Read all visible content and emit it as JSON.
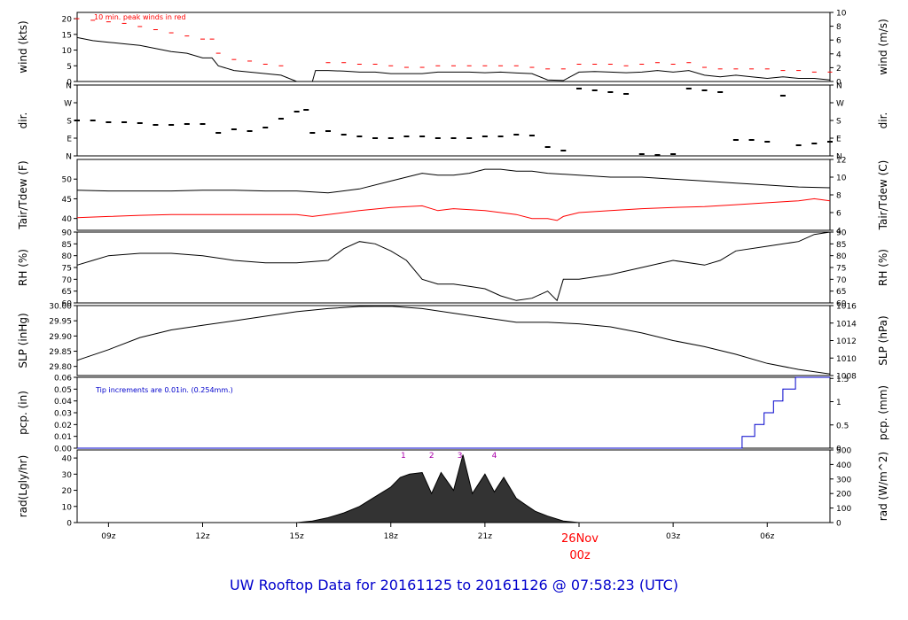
{
  "colors": {
    "axis": "#000000",
    "line": "#000000",
    "red": "#ff0000",
    "blue": "#0000cc",
    "purple": "#aa00aa",
    "footer": "#0000cc"
  },
  "footer_title": "UW Rooftop Data for 20161125  to  20161126 @ 07:58:23  (UTC)",
  "chart_data": [
    {
      "type": "line",
      "id": "wind",
      "ylabel_left": "wind (kts)",
      "ylabel_right": "wind (m/s)",
      "ylim": [
        0,
        22
      ],
      "left_ticks": [
        0,
        5,
        10,
        15,
        20
      ],
      "right_ticks": [
        "0",
        "2",
        "4",
        "6",
        "8",
        "10"
      ],
      "annotation": "10 min. peak winds in red",
      "series": [
        {
          "color": "#000000",
          "x_hours": [
            8,
            8.5,
            9,
            9.5,
            10,
            10.5,
            11,
            11.5,
            12,
            12.3,
            12.5,
            13,
            13.5,
            14,
            14.5,
            15,
            15.5,
            15.6,
            16,
            16.5,
            17,
            17.5,
            18,
            18.5,
            19,
            19.5,
            20,
            20.5,
            21,
            21.5,
            22,
            22.5,
            23,
            23.5,
            24,
            24.5,
            25,
            25.5,
            26,
            26.5,
            27,
            27.5,
            28,
            28.5,
            29,
            29.5,
            30,
            30.5,
            31,
            31.5,
            32
          ],
          "values": [
            14,
            13,
            12.5,
            12,
            11.5,
            10.5,
            9.5,
            9,
            7.5,
            7.5,
            5,
            3.5,
            3,
            2.5,
            2,
            0,
            0,
            3.5,
            3.5,
            3.3,
            3,
            3,
            2.5,
            2.5,
            2.5,
            3,
            3,
            3,
            2.8,
            3,
            2.7,
            2.5,
            0.5,
            0.3,
            3,
            3.2,
            3,
            2.8,
            3,
            3.5,
            3,
            3.5,
            2,
            1.5,
            2,
            1.5,
            1,
            1.5,
            1,
            1,
            0.5
          ]
        },
        {
          "color": "#ff0000",
          "x_hours": [
            8,
            8.5,
            9,
            9.5,
            10,
            10.5,
            11,
            11.5,
            12,
            12.3,
            12.5,
            13,
            13.5,
            14,
            14.5,
            16,
            16.5,
            17,
            17.5,
            18,
            18.5,
            19,
            19.5,
            20,
            20.5,
            21,
            21.5,
            22,
            22.5,
            23,
            23.5,
            24,
            24.5,
            25,
            25.5,
            26,
            26.5,
            27,
            27.5,
            28,
            28.5,
            29,
            29.5,
            30,
            30.5,
            31,
            31.5,
            32
          ],
          "values": [
            20,
            19.5,
            19,
            18.5,
            17.5,
            16.5,
            15.5,
            14.5,
            13.5,
            13.5,
            9,
            7,
            6.5,
            5.5,
            5,
            6,
            6,
            5.5,
            5.5,
            5,
            4.5,
            4.5,
            5,
            5,
            5,
            5,
            5,
            5,
            4.5,
            4,
            4,
            5.5,
            5.5,
            5.5,
            5,
            5.5,
            6,
            5.5,
            6,
            4.5,
            4,
            4,
            4,
            4,
            3.5,
            3.5,
            3,
            3
          ]
        }
      ]
    },
    {
      "type": "scatter",
      "id": "dir",
      "ylabel_left": "dir.",
      "ylabel_right": "dir.",
      "ylim": [
        0,
        4
      ],
      "left_ticks": [
        "N",
        "E",
        "S",
        "W",
        "N"
      ],
      "right_ticks": [
        "N",
        "E",
        "S",
        "W",
        "N"
      ],
      "series": [
        {
          "color": "#000000",
          "x_hours": [
            8,
            8.5,
            9,
            9.5,
            10,
            10.5,
            11,
            11.5,
            12,
            12.5,
            13,
            13.5,
            14,
            14.5,
            15,
            15.3,
            15.5,
            16,
            16.5,
            17,
            17.5,
            18,
            18.5,
            19,
            19.5,
            20,
            20.5,
            21,
            21.5,
            22,
            22.5,
            23,
            23.5,
            24,
            24.5,
            25,
            25.5,
            26,
            26.5,
            27,
            27.5,
            28,
            28.5,
            29,
            29.5,
            30,
            30.5,
            31,
            31.5,
            32
          ],
          "values": [
            2,
            2,
            1.9,
            1.9,
            1.85,
            1.75,
            1.75,
            1.8,
            1.8,
            1.3,
            1.5,
            1.4,
            1.6,
            2.1,
            2.5,
            2.6,
            1.3,
            1.4,
            1.2,
            1.1,
            1.0,
            1.0,
            1.1,
            1.1,
            1.0,
            1.0,
            1.0,
            1.1,
            1.1,
            1.2,
            1.15,
            0.5,
            0.3,
            3.8,
            3.7,
            3.6,
            3.5,
            0.1,
            0.05,
            0.1,
            3.8,
            3.7,
            3.6,
            0.9,
            0.9,
            0.8,
            3.4,
            0.6,
            0.7,
            0.8
          ]
        }
      ]
    },
    {
      "type": "line",
      "id": "temp",
      "ylabel_left": "Tair/Tdew (F)",
      "ylabel_right": "Tair/Tdew (C)",
      "ylim": [
        37,
        55
      ],
      "left_ticks": [
        40,
        45,
        50
      ],
      "right_ticks": [
        "4",
        "6",
        "8",
        "10",
        "12"
      ],
      "series": [
        {
          "color": "#000000",
          "x_hours": [
            8,
            9,
            10,
            11,
            12,
            13,
            14,
            15,
            16,
            17,
            18,
            18.5,
            19,
            19.5,
            20,
            20.5,
            21,
            21.5,
            22,
            22.5,
            23,
            24,
            25,
            26,
            27,
            28,
            29,
            30,
            31,
            32
          ],
          "values": [
            47.2,
            47,
            47,
            47,
            47.2,
            47.2,
            47,
            47,
            46.5,
            47.5,
            49.5,
            50.5,
            51.5,
            51,
            51,
            51.5,
            52.5,
            52.5,
            52,
            52,
            51.5,
            51,
            50.5,
            50.5,
            50,
            49.5,
            49,
            48.5,
            48,
            47.8
          ]
        },
        {
          "color": "#ff0000",
          "x_hours": [
            8,
            9,
            10,
            11,
            12,
            13,
            14,
            15,
            15.5,
            16,
            17,
            18,
            19,
            19.5,
            20,
            21,
            21.5,
            22,
            22.5,
            23,
            23.3,
            23.5,
            24,
            25,
            26,
            27,
            28,
            29,
            30,
            31,
            31.5,
            32
          ],
          "values": [
            40.2,
            40.5,
            40.8,
            41,
            41,
            41,
            41,
            41,
            40.5,
            41,
            42,
            42.8,
            43.2,
            42,
            42.5,
            42,
            41.5,
            41,
            40,
            40,
            39.5,
            40.5,
            41.5,
            42,
            42.5,
            42.8,
            43,
            43.5,
            44,
            44.5,
            45,
            44.5
          ]
        }
      ]
    },
    {
      "type": "line",
      "id": "rh",
      "ylabel_left": "RH (%)",
      "ylabel_right": "RH (%)",
      "ylim": [
        60,
        90
      ],
      "left_ticks": [
        60,
        65,
        70,
        75,
        80,
        85,
        90
      ],
      "right_ticks": [
        "60",
        "65",
        "70",
        "75",
        "80",
        "85",
        "90"
      ],
      "series": [
        {
          "color": "#000000",
          "x_hours": [
            8,
            8.5,
            9,
            10,
            11,
            12,
            13,
            14,
            15,
            16,
            16.5,
            17,
            17.5,
            18,
            18.5,
            19,
            19.5,
            20,
            20.5,
            21,
            21.5,
            22,
            22.5,
            23,
            23.3,
            23.5,
            24,
            25,
            26,
            27,
            28,
            28.5,
            29,
            30,
            31,
            31.5,
            32
          ],
          "values": [
            76,
            78,
            80,
            81,
            81,
            80,
            78,
            77,
            77,
            78,
            83,
            86,
            85,
            82,
            78,
            70,
            68,
            68,
            67,
            66,
            63,
            61,
            62,
            65,
            61,
            70,
            70,
            72,
            75,
            78,
            76,
            78,
            82,
            84,
            86,
            89,
            90
          ]
        }
      ]
    },
    {
      "type": "line",
      "id": "slp",
      "ylabel_left": "SLP (inHg)",
      "ylabel_right": "SLP (hPa)",
      "ylim": [
        29.77,
        30.0
      ],
      "left_ticks": [
        29.8,
        29.85,
        29.9,
        29.95,
        30.0
      ],
      "left_tick_labels": [
        "29.80",
        "29.85",
        "29.90",
        "29.95",
        "30.00"
      ],
      "right_ticks": [
        "1008",
        "1010",
        "1012",
        "1014",
        "1016"
      ],
      "series": [
        {
          "color": "#000000",
          "x_hours": [
            8,
            9,
            10,
            11,
            12,
            13,
            14,
            15,
            16,
            17,
            18,
            19,
            20,
            21,
            22,
            23,
            24,
            25,
            26,
            27,
            28,
            29,
            30,
            31,
            32
          ],
          "values": [
            29.82,
            29.855,
            29.895,
            29.92,
            29.935,
            29.95,
            29.965,
            29.98,
            29.99,
            29.997,
            29.998,
            29.99,
            29.975,
            29.96,
            29.945,
            29.945,
            29.94,
            29.93,
            29.91,
            29.885,
            29.865,
            29.84,
            29.81,
            29.79,
            29.775
          ]
        }
      ]
    },
    {
      "type": "line",
      "id": "pcp",
      "ylabel_left": "pcp. (in)",
      "ylabel_right": "pcp. (mm)",
      "ylim": [
        0,
        0.06
      ],
      "left_ticks": [
        0,
        0.01,
        0.02,
        0.03,
        0.04,
        0.05,
        0.06
      ],
      "left_tick_labels": [
        "0.00",
        "0.01",
        "0.02",
        "0.03",
        "0.04",
        "0.05",
        "0.06"
      ],
      "right_ticks": [
        "0",
        "0.5",
        "1",
        "1.5"
      ],
      "annotation": "Tip increments are 0.01in. (0.254mm.)",
      "series": [
        {
          "color": "#0000cc",
          "x_hours": [
            8,
            29.2,
            29.2,
            29.6,
            29.6,
            29.9,
            29.9,
            30.2,
            30.2,
            30.5,
            30.5,
            30.9,
            30.9,
            31.4,
            31.4,
            32
          ],
          "values": [
            0,
            0,
            0.01,
            0.01,
            0.02,
            0.02,
            0.03,
            0.03,
            0.04,
            0.04,
            0.05,
            0.05,
            0.06,
            0.06,
            0.06,
            0.06
          ]
        }
      ]
    },
    {
      "type": "area",
      "id": "rad",
      "ylabel_left": "rad(Lgly/hr)",
      "ylabel_right": "rad (W/m^2)",
      "ylim": [
        0,
        45
      ],
      "left_ticks": [
        0,
        10,
        20,
        30,
        40
      ],
      "right_ticks": [
        "0",
        "100",
        "200",
        "300",
        "400",
        "500"
      ],
      "markers": [
        "1",
        "2",
        "3",
        "4"
      ],
      "marker_hours": [
        18.4,
        19.3,
        20.2,
        21.3
      ],
      "series": [
        {
          "color": "#000000",
          "x_hours": [
            15,
            15.5,
            16,
            16.5,
            17,
            17.5,
            18,
            18.3,
            18.6,
            19,
            19.3,
            19.6,
            20,
            20.3,
            20.6,
            21,
            21.3,
            21.6,
            22,
            22.3,
            22.6,
            23,
            23.5,
            24
          ],
          "values": [
            0,
            1,
            3,
            6,
            10,
            16,
            22,
            28,
            30,
            31,
            18,
            31,
            20,
            42,
            18,
            30,
            19,
            28,
            15,
            11,
            7,
            4,
            1,
            0
          ]
        }
      ]
    }
  ],
  "x_axis": {
    "tick_hours": [
      9,
      12,
      15,
      18,
      21,
      24,
      27,
      30
    ],
    "tick_labels": [
      "09z",
      "12z",
      "15z",
      "18z",
      "21z",
      "",
      "03z",
      "06z"
    ],
    "date_label_line1": "26Nov",
    "date_label_line2": "00z"
  }
}
